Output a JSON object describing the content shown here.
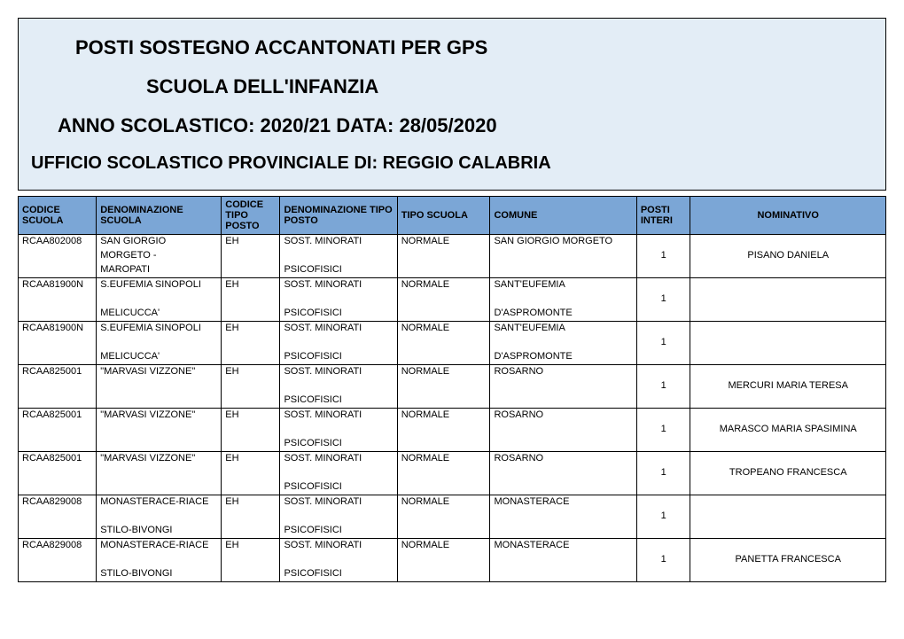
{
  "header": {
    "line1": "POSTI SOSTEGNO ACCANTONATI PER GPS",
    "line2": "SCUOLA DELL'INFANZIA",
    "line3": "ANNO SCOLASTICO: 2020/21 DATA: 28/05/2020",
    "line4": "UFFICIO SCOLASTICO PROVINCIALE DI: REGGIO CALABRIA"
  },
  "columns": [
    "CODICE SCUOLA",
    "DENOMINAZIONE SCUOLA",
    "CODICE TIPO POSTO",
    "DENOMINAZIONE TIPO POSTO",
    "TIPO SCUOLA",
    "COMUNE",
    "POSTI INTERI",
    "NOMINATIVO"
  ],
  "rows": [
    {
      "codice_scuola": "RCAA802008",
      "denominazione_scuola": [
        "SAN GIORGIO",
        "MORGETO -",
        "MAROPATI"
      ],
      "codice_tipo_posto": "EH",
      "denominazione_tipo_posto": [
        "SOST. MINORATI",
        "",
        "PSICOFISICI"
      ],
      "tipo_scuola": "NORMALE",
      "comune": [
        "SAN GIORGIO MORGETO",
        "",
        ""
      ],
      "posti_interi": "1",
      "nominativo": "PISANO DANIELA"
    },
    {
      "codice_scuola": "RCAA81900N",
      "denominazione_scuola": [
        "S.EUFEMIA SINOPOLI",
        "",
        "MELICUCCA'"
      ],
      "codice_tipo_posto": "EH",
      "denominazione_tipo_posto": [
        "SOST. MINORATI",
        "",
        "PSICOFISICI"
      ],
      "tipo_scuola": "NORMALE",
      "comune": [
        "SANT'EUFEMIA",
        "",
        "D'ASPROMONTE"
      ],
      "posti_interi": "1",
      "nominativo": ""
    },
    {
      "codice_scuola": "RCAA81900N",
      "denominazione_scuola": [
        "S.EUFEMIA SINOPOLI",
        "",
        "MELICUCCA'"
      ],
      "codice_tipo_posto": "EH",
      "denominazione_tipo_posto": [
        "SOST. MINORATI",
        "",
        "PSICOFISICI"
      ],
      "tipo_scuola": "NORMALE",
      "comune": [
        "SANT'EUFEMIA",
        "",
        "D'ASPROMONTE"
      ],
      "posti_interi": "1",
      "nominativo": ""
    },
    {
      "codice_scuola": "RCAA825001",
      "denominazione_scuola": [
        "\"MARVASI VIZZONE\"",
        "",
        ""
      ],
      "codice_tipo_posto": "EH",
      "denominazione_tipo_posto": [
        "SOST. MINORATI",
        "",
        "PSICOFISICI"
      ],
      "tipo_scuola": "NORMALE",
      "comune": [
        "ROSARNO",
        "",
        ""
      ],
      "posti_interi": "1",
      "nominativo": "MERCURI MARIA TERESA"
    },
    {
      "codice_scuola": "RCAA825001",
      "denominazione_scuola": [
        "\"MARVASI VIZZONE\"",
        "",
        ""
      ],
      "codice_tipo_posto": "EH",
      "denominazione_tipo_posto": [
        "SOST. MINORATI",
        "",
        "PSICOFISICI"
      ],
      "tipo_scuola": "NORMALE",
      "comune": [
        "ROSARNO",
        "",
        ""
      ],
      "posti_interi": "1",
      "nominativo": "MARASCO MARIA SPASIMINA"
    },
    {
      "codice_scuola": "RCAA825001",
      "denominazione_scuola": [
        "\"MARVASI VIZZONE\"",
        "",
        ""
      ],
      "codice_tipo_posto": "EH",
      "denominazione_tipo_posto": [
        "SOST. MINORATI",
        "",
        "PSICOFISICI"
      ],
      "tipo_scuola": "NORMALE",
      "comune": [
        "ROSARNO",
        "",
        ""
      ],
      "posti_interi": "1",
      "nominativo": "TROPEANO FRANCESCA"
    },
    {
      "codice_scuola": "RCAA829008",
      "denominazione_scuola": [
        "MONASTERACE-RIACE",
        "",
        "STILO-BIVONGI"
      ],
      "codice_tipo_posto": "EH",
      "denominazione_tipo_posto": [
        "SOST. MINORATI",
        "",
        "PSICOFISICI"
      ],
      "tipo_scuola": "NORMALE",
      "comune": [
        "MONASTERACE",
        "",
        ""
      ],
      "posti_interi": "1",
      "nominativo": ""
    },
    {
      "codice_scuola": "RCAA829008",
      "denominazione_scuola": [
        "MONASTERACE-RIACE",
        "",
        "STILO-BIVONGI"
      ],
      "codice_tipo_posto": "EH",
      "denominazione_tipo_posto": [
        "SOST. MINORATI",
        "",
        "PSICOFISICI"
      ],
      "tipo_scuola": "NORMALE",
      "comune": [
        "MONASTERACE",
        "",
        ""
      ],
      "posti_interi": "1",
      "nominativo": "PANETTA FRANCESCA"
    }
  ],
  "styling": {
    "title_bg": "#e3edf6",
    "header_row_bg": "#7ba6d6",
    "border_color": "#000000",
    "title_fontsize": 22,
    "subtitle_fontsize": 20,
    "table_fontsize": 11,
    "font_family": "Arial"
  }
}
